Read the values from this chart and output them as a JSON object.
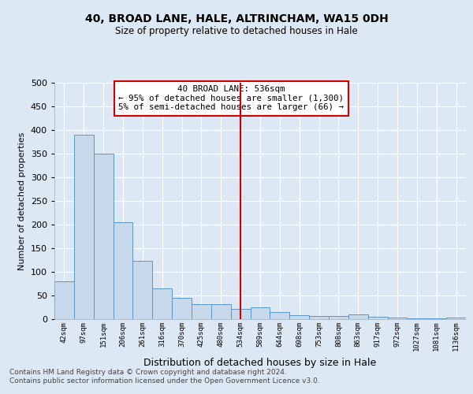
{
  "title": "40, BROAD LANE, HALE, ALTRINCHAM, WA15 0DH",
  "subtitle": "Size of property relative to detached houses in Hale",
  "xlabel": "Distribution of detached houses by size in Hale",
  "ylabel": "Number of detached properties",
  "bin_labels": [
    "42sqm",
    "97sqm",
    "151sqm",
    "206sqm",
    "261sqm",
    "316sqm",
    "370sqm",
    "425sqm",
    "480sqm",
    "534sqm",
    "589sqm",
    "644sqm",
    "698sqm",
    "753sqm",
    "808sqm",
    "863sqm",
    "917sqm",
    "972sqm",
    "1027sqm",
    "1081sqm",
    "1136sqm"
  ],
  "bar_heights": [
    80,
    390,
    350,
    205,
    123,
    65,
    45,
    32,
    32,
    22,
    25,
    15,
    8,
    7,
    6,
    10,
    5,
    3,
    2,
    2,
    3
  ],
  "bar_color": "#c8d9eb",
  "bar_edge_color": "#5a96c8",
  "vline_idx": 9,
  "vline_color": "#cc0000",
  "annotation_text": "40 BROAD LANE: 536sqm\n← 95% of detached houses are smaller (1,300)\n5% of semi-detached houses are larger (66) →",
  "annotation_box_color": "#ffffff",
  "annotation_box_edge": "#cc0000",
  "footer": "Contains HM Land Registry data © Crown copyright and database right 2024.\nContains public sector information licensed under the Open Government Licence v3.0.",
  "bg_color": "#dde8f5",
  "plot_bg_color": "#dde8f5",
  "grid_color": "#ffffff",
  "ylim": [
    0,
    500
  ],
  "yticks": [
    0,
    50,
    100,
    150,
    200,
    250,
    300,
    350,
    400,
    450,
    500
  ]
}
